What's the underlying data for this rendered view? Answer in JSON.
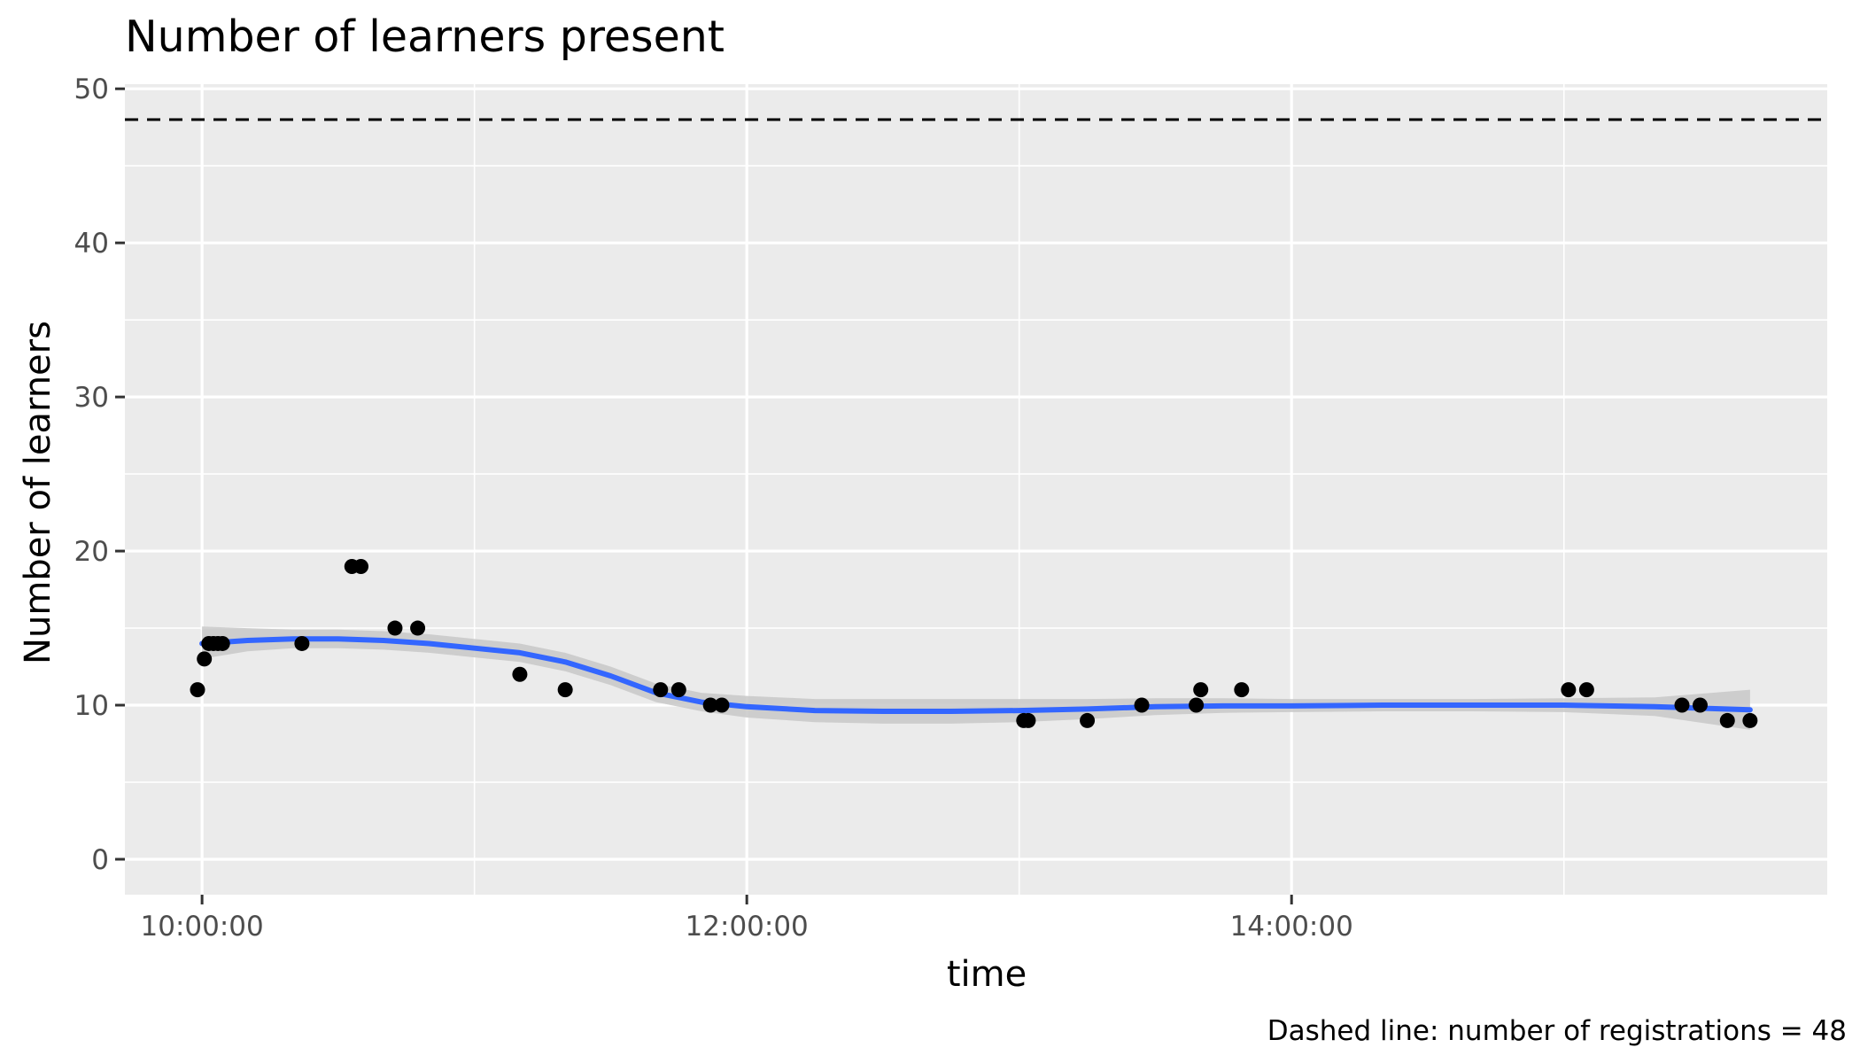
{
  "chart_data": {
    "type": "scatter",
    "title": "Number of learners present",
    "xlabel": "time",
    "ylabel": "Number of learners",
    "caption": "Dashed line: number of registrations = 48",
    "x_unit": "time of day (hh:mm:ss)",
    "x_ticks": [
      "10:00:00",
      "12:00:00",
      "14:00:00"
    ],
    "x_range": [
      "09:43:00",
      "15:58:00"
    ],
    "y_ticks": [
      0,
      10,
      20,
      30,
      40,
      50
    ],
    "ylim": [
      -2.3,
      50.3
    ],
    "grid": true,
    "background": "#ebebeb",
    "reference_line": {
      "value": 48,
      "style": "dashed",
      "color": "#000000"
    },
    "points": [
      {
        "x": "09:59:00",
        "y": 11
      },
      {
        "x": "10:00:30",
        "y": 13
      },
      {
        "x": "10:01:30",
        "y": 14
      },
      {
        "x": "10:02:30",
        "y": 14
      },
      {
        "x": "10:03:30",
        "y": 14
      },
      {
        "x": "10:04:30",
        "y": 14
      },
      {
        "x": "10:22:00",
        "y": 14
      },
      {
        "x": "10:33:00",
        "y": 19
      },
      {
        "x": "10:35:00",
        "y": 19
      },
      {
        "x": "10:42:30",
        "y": 15
      },
      {
        "x": "10:47:30",
        "y": 15
      },
      {
        "x": "11:10:00",
        "y": 12
      },
      {
        "x": "11:20:00",
        "y": 11
      },
      {
        "x": "11:41:00",
        "y": 11
      },
      {
        "x": "11:45:00",
        "y": 11
      },
      {
        "x": "11:52:00",
        "y": 10
      },
      {
        "x": "11:54:30",
        "y": 10
      },
      {
        "x": "13:01:00",
        "y": 9
      },
      {
        "x": "13:02:00",
        "y": 9
      },
      {
        "x": "13:15:00",
        "y": 9
      },
      {
        "x": "13:27:00",
        "y": 10
      },
      {
        "x": "13:39:00",
        "y": 10
      },
      {
        "x": "13:40:00",
        "y": 11
      },
      {
        "x": "13:49:00",
        "y": 11
      },
      {
        "x": "15:01:00",
        "y": 11
      },
      {
        "x": "15:05:00",
        "y": 11
      },
      {
        "x": "15:26:00",
        "y": 10
      },
      {
        "x": "15:30:00",
        "y": 10
      },
      {
        "x": "15:36:00",
        "y": 9
      },
      {
        "x": "15:41:00",
        "y": 9
      }
    ],
    "smooth": {
      "color": "#3366ff",
      "band_color": "#c8c8c8",
      "x": [
        "10:00:00",
        "10:10:00",
        "10:20:00",
        "10:30:00",
        "10:40:00",
        "10:50:00",
        "11:00:00",
        "11:10:00",
        "11:20:00",
        "11:30:00",
        "11:40:00",
        "11:50:00",
        "12:00:00",
        "12:15:00",
        "12:30:00",
        "12:45:00",
        "13:00:00",
        "13:15:00",
        "13:30:00",
        "13:45:00",
        "14:00:00",
        "14:20:00",
        "14:40:00",
        "15:00:00",
        "15:20:00",
        "15:41:00"
      ],
      "y": [
        14.0,
        14.2,
        14.3,
        14.3,
        14.2,
        14.0,
        13.7,
        13.4,
        12.8,
        11.9,
        10.8,
        10.2,
        9.9,
        9.65,
        9.6,
        9.6,
        9.65,
        9.75,
        9.9,
        9.95,
        9.95,
        10.0,
        10.0,
        10.0,
        9.9,
        9.7
      ],
      "lower": [
        13.0,
        13.5,
        13.7,
        13.7,
        13.6,
        13.4,
        13.1,
        12.8,
        12.2,
        11.3,
        10.2,
        9.6,
        9.2,
        8.9,
        8.8,
        8.8,
        8.9,
        9.1,
        9.35,
        9.5,
        9.55,
        9.6,
        9.6,
        9.55,
        9.3,
        8.4
      ],
      "upper": [
        15.1,
        15.0,
        14.9,
        14.9,
        14.8,
        14.6,
        14.3,
        14.0,
        13.4,
        12.5,
        11.4,
        10.8,
        10.6,
        10.4,
        10.4,
        10.4,
        10.4,
        10.4,
        10.45,
        10.45,
        10.4,
        10.4,
        10.4,
        10.45,
        10.5,
        11.0
      ]
    }
  }
}
